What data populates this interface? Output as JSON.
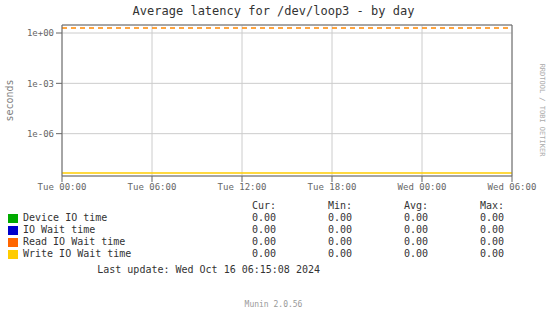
{
  "chart_data": {
    "type": "line",
    "title": "Average latency for /dev/loop3 - by day",
    "ylabel": "seconds",
    "categories": [
      "Tue 00:00",
      "Tue 06:00",
      "Tue 12:00",
      "Tue 18:00",
      "Wed 00:00",
      "Wed 06:00"
    ],
    "ylim": [
      3e-09,
      3.0
    ],
    "yticks": [
      {
        "value": 1e-06,
        "label": "1e-06"
      },
      {
        "value": 0.001,
        "label": "1e-03"
      },
      {
        "value": 1,
        "label": "1e+00"
      }
    ],
    "log": "y",
    "grid": true,
    "series": [
      {
        "name": "Device IO time",
        "color": "#00aa00"
      },
      {
        "name": "IO Wait time",
        "color": "#0000cc"
      },
      {
        "name": "Read IO Wait time",
        "color": "#ff6600"
      },
      {
        "name": "Write IO Wait time",
        "color": "#ffcc00"
      }
    ],
    "reference_lines": [
      {
        "y": 2.0,
        "color": "#ff8800",
        "line_style": "dashed"
      },
      {
        "y": 4.5e-09,
        "color": "#ffcc00",
        "line_style": "solid"
      }
    ],
    "table_headers": [
      "Cur:",
      "Min:",
      "Avg:",
      "Max:"
    ],
    "table_values": [
      [
        "0.00",
        "0.00",
        "0.00",
        "0.00"
      ],
      [
        "0.00",
        "0.00",
        "0.00",
        "0.00"
      ],
      [
        "0.00",
        "0.00",
        "0.00",
        "0.00"
      ],
      [
        "0.00",
        "0.00",
        "0.00",
        "0.00"
      ]
    ],
    "last_update": "Last update: Wed Oct 16 06:15:08 2024",
    "watermark": "RRDTOOL / TOBI OETIKER",
    "footer": "Munin 2.0.56"
  }
}
